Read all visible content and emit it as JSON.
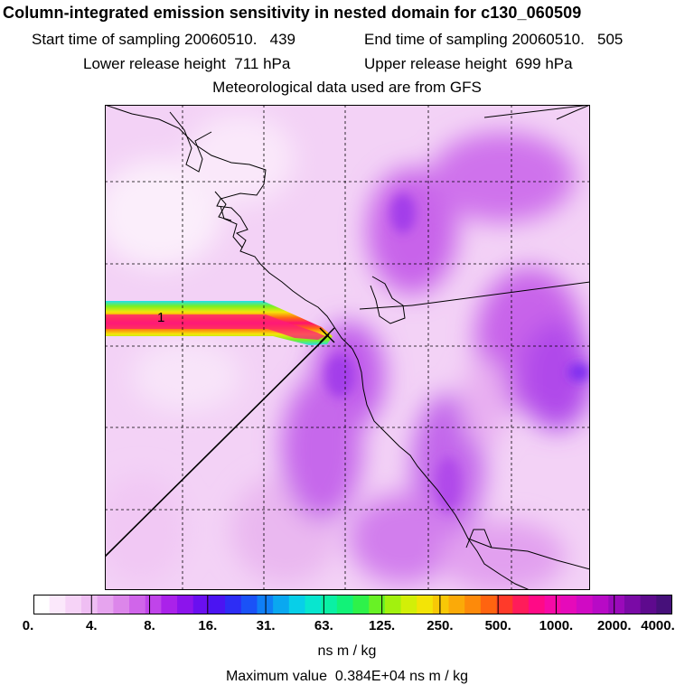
{
  "header": {
    "title": "Column-integrated emission sensitivity in nested domain for c130_060509",
    "start_label": "Start time of sampling 20060510.   439",
    "end_label": "End time of sampling 20060510.   505",
    "lower_label": "Lower release height  711 hPa",
    "upper_label": "Upper release height  699 hPa",
    "met_label": "Meteorological data used are from GFS"
  },
  "map": {
    "plume_label": "1",
    "background_color": "#f0c6f4",
    "accent_color": "#b12bea"
  },
  "colorbar": {
    "colors": [
      "#ffffff",
      "#fbe8fb",
      "#f6d3f7",
      "#efbef3",
      "#e6a4ee",
      "#dc86ea",
      "#d065ea",
      "#c044ea",
      "#aa22ea",
      "#8c14ec",
      "#6a0ff0",
      "#4b14f2",
      "#2d2df5",
      "#1a52f7",
      "#0f7ff6",
      "#0aa8f0",
      "#08cfe8",
      "#08e6cf",
      "#0af0a4",
      "#12f278",
      "#2ef24a",
      "#68f225",
      "#a2f10e",
      "#d2ef08",
      "#f3e406",
      "#f8c806",
      "#fbaa08",
      "#fd8a0a",
      "#ff6410",
      "#ff3a2a",
      "#ff1c5a",
      "#ff0a86",
      "#f60aa6",
      "#e60aba",
      "#d00ac4",
      "#b80ac6",
      "#9a0aba",
      "#7a0aa6",
      "#5e0a8e",
      "#46107a"
    ],
    "ticks": [
      "0.",
      "4.",
      "8.",
      "16.",
      "31.",
      "63.",
      "125.",
      "250.",
      "500.",
      "1000.",
      "2000.",
      "4000."
    ],
    "units": "ns m / kg"
  },
  "footer": {
    "max_value": "Maximum value  0.384E+04 ns m / kg"
  }
}
